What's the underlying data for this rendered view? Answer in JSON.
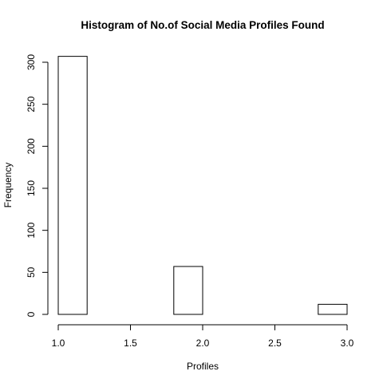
{
  "chart_data": {
    "type": "bar",
    "title": "Histogram of No.of Social Media Profiles Found",
    "xlabel": "Profiles",
    "ylabel": "Frequency",
    "xlim": [
      1.0,
      3.0
    ],
    "ylim": [
      0,
      300
    ],
    "x_ticks": [
      "1.0",
      "1.5",
      "2.0",
      "2.5",
      "3.0"
    ],
    "y_ticks": [
      "0",
      "50",
      "100",
      "150",
      "200",
      "250",
      "300"
    ],
    "bins": [
      {
        "from": 1.0,
        "to": 1.2,
        "count": 307
      },
      {
        "from": 1.2,
        "to": 1.4,
        "count": 0
      },
      {
        "from": 1.4,
        "to": 1.6,
        "count": 0
      },
      {
        "from": 1.6,
        "to": 1.8,
        "count": 0
      },
      {
        "from": 1.8,
        "to": 2.0,
        "count": 57
      },
      {
        "from": 2.0,
        "to": 2.2,
        "count": 0
      },
      {
        "from": 2.2,
        "to": 2.4,
        "count": 0
      },
      {
        "from": 2.4,
        "to": 2.6,
        "count": 0
      },
      {
        "from": 2.6,
        "to": 2.8,
        "count": 0
      },
      {
        "from": 2.8,
        "to": 3.0,
        "count": 12
      }
    ],
    "grid": false,
    "colors": {
      "bar_fill": "#ffffff",
      "bar_stroke": "#000000"
    }
  }
}
